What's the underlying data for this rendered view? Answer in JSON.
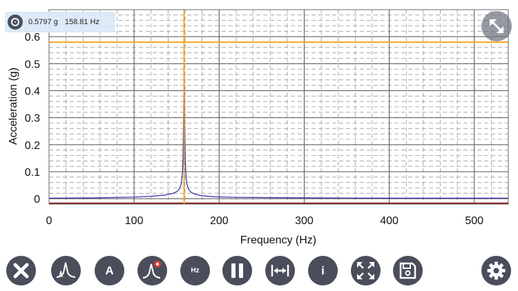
{
  "cursor_readout": {
    "amplitude": "0.5797 g",
    "frequency": "158.81 Hz",
    "icon": "crosshair-target-icon"
  },
  "chart_data": {
    "type": "line",
    "xlabel": "Frequency (Hz)",
    "ylabel": "Acceleration (g)",
    "xlim": [
      0,
      540
    ],
    "ylim": [
      -0.02,
      0.7
    ],
    "x_ticks": [
      0,
      100,
      200,
      300,
      400,
      500
    ],
    "y_ticks": [
      0,
      0.1,
      0.2,
      0.3,
      0.4,
      0.5,
      0.6
    ],
    "y_tick_labels": [
      "0",
      "0.1",
      "0.2",
      "0.3",
      "0.4",
      "0.5",
      "0.6"
    ],
    "grid": true,
    "series": [
      {
        "color": "#2c2ca8",
        "x": [
          0,
          50,
          100,
          120,
          135,
          145,
          150,
          153,
          155,
          156,
          157,
          157.5,
          158,
          158.4,
          158.81,
          159.2,
          159.6,
          160.2,
          161,
          162,
          164,
          167,
          172,
          180,
          195,
          220,
          260,
          320,
          400,
          480,
          540
        ],
        "y": [
          0.002,
          0.003,
          0.006,
          0.009,
          0.013,
          0.019,
          0.026,
          0.035,
          0.05,
          0.07,
          0.1,
          0.15,
          0.26,
          0.4,
          0.58,
          0.42,
          0.26,
          0.14,
          0.085,
          0.055,
          0.035,
          0.024,
          0.016,
          0.011,
          0.007,
          0.005,
          0.004,
          0.003,
          0.002,
          0.002,
          0.002
        ]
      }
    ],
    "cursor": {
      "x": 158.81,
      "y": 0.5797,
      "color": "#f5a623"
    },
    "baseline_color": "#8b1a1a"
  },
  "toolbar": {
    "buttons": [
      {
        "name": "close-button",
        "icon": "close-icon"
      },
      {
        "name": "spectrum-button",
        "icon": "spectrum-peak-icon"
      },
      {
        "name": "amplitude-button",
        "label": "A"
      },
      {
        "name": "spectrum-settings-button",
        "icon": "spectrum-gear-icon"
      },
      {
        "name": "hz-units-button",
        "label": "Hz"
      },
      {
        "name": "pause-button",
        "icon": "pause-icon"
      },
      {
        "name": "fit-range-button",
        "icon": "fit-width-icon"
      },
      {
        "name": "info-button",
        "label": "i"
      },
      {
        "name": "fullscreen-button",
        "icon": "expand-arrows-icon"
      },
      {
        "name": "save-button",
        "icon": "floppy-disk-icon"
      },
      {
        "name": "settings-button",
        "icon": "gear-icon"
      }
    ]
  },
  "colors": {
    "toolbar_button": "#4a4e5b",
    "cursor": "#f5a623",
    "readout_bg": "#dae8f6"
  }
}
